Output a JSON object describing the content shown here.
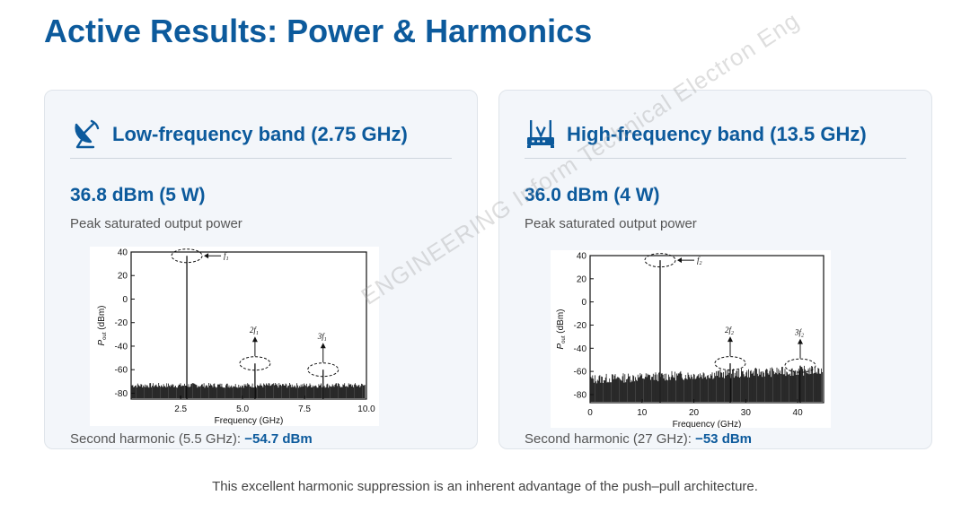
{
  "title": "Active Results: Power & Harmonics",
  "cards": [
    {
      "icon": "satellite-dish-icon",
      "heading": "Low-frequency band (2.75 GHz)",
      "value": "36.8 dBm (5 W)",
      "desc": "Peak saturated output power",
      "harmonic_label": "Second harmonic (5.5 GHz): ",
      "harmonic_value": "−54.7 dBm"
    },
    {
      "icon": "router-icon",
      "heading": "High-frequency band (13.5 GHz)",
      "value": "36.0 dBm (4 W)",
      "desc": "Peak saturated output power",
      "harmonic_label": "Second harmonic (27 GHz): ",
      "harmonic_value": "−53 dBm"
    }
  ],
  "footer": "This excellent harmonic suppression is an inherent advantage of the push–pull architecture.",
  "watermark": "ENGINEERING Inform Technical Electron Eng",
  "colors": {
    "accent": "#0c5a9c",
    "card_bg": "#f3f6fa",
    "card_border": "#dfe4ea"
  },
  "chart_data": [
    {
      "type": "line",
      "xlabel": "Frequency (GHz)",
      "ylabel": "P_out (dBm)",
      "xlim": [
        0.5,
        10.0
      ],
      "ylim": [
        -85,
        40
      ],
      "xticks": [
        2.5,
        5.0,
        7.5,
        10.0
      ],
      "xtick_labels": [
        "2.5",
        "5.0",
        "7.5",
        "10.0"
      ],
      "yticks": [
        40,
        20,
        0,
        -20,
        -40,
        -60,
        -80
      ],
      "noise_floor": [
        -80,
        -73
      ],
      "peaks": [
        {
          "x": 2.75,
          "y": 36.8,
          "label": "f",
          "sub": "1"
        },
        {
          "x": 5.5,
          "y": -54.7,
          "label": "2f",
          "sub": "1"
        },
        {
          "x": 8.25,
          "y": -60,
          "label": "3f",
          "sub": "1"
        }
      ]
    },
    {
      "type": "line",
      "xlabel": "Frequency (GHz)",
      "ylabel": "P_out (dBm)",
      "xlim": [
        0,
        45
      ],
      "ylim": [
        -87,
        40
      ],
      "xticks": [
        0,
        10,
        20,
        30,
        40
      ],
      "xtick_labels": [
        "0",
        "10",
        "20",
        "30",
        "40"
      ],
      "yticks": [
        40,
        20,
        0,
        -20,
        -40,
        -60,
        -80
      ],
      "noise_floor": [
        -80,
        -66
      ],
      "peaks": [
        {
          "x": 13.5,
          "y": 36.0,
          "label": "f",
          "sub": "2"
        },
        {
          "x": 27,
          "y": -53,
          "label": "2f",
          "sub": "2"
        },
        {
          "x": 40.5,
          "y": -55,
          "label": "3f",
          "sub": "2"
        }
      ]
    }
  ]
}
